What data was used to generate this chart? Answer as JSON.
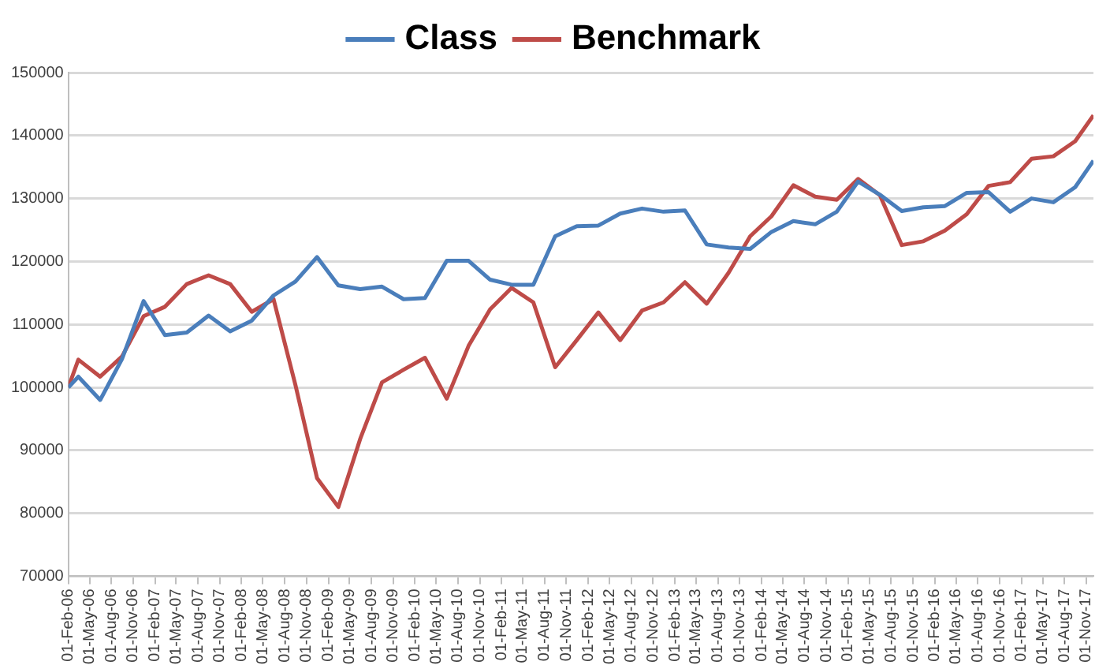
{
  "chart_data": {
    "type": "line",
    "legend": "top",
    "grid": "y",
    "marker": "none",
    "line_style": "solid",
    "x": [
      "2006-02-01",
      "2006-03-15",
      "2006-06-15",
      "2006-09-15",
      "2006-12-15",
      "2007-03-15",
      "2007-06-15",
      "2007-09-15",
      "2007-12-15",
      "2008-03-15",
      "2008-06-15",
      "2008-09-15",
      "2008-12-15",
      "2009-03-15",
      "2009-06-15",
      "2009-09-15",
      "2009-12-15",
      "2010-03-15",
      "2010-06-15",
      "2010-09-15",
      "2010-12-15",
      "2011-03-15",
      "2011-06-15",
      "2011-09-15",
      "2011-12-15",
      "2012-03-15",
      "2012-06-15",
      "2012-09-15",
      "2012-12-15",
      "2013-03-15",
      "2013-06-15",
      "2013-09-15",
      "2013-12-15",
      "2014-03-15",
      "2014-06-15",
      "2014-09-15",
      "2014-12-15",
      "2015-03-15",
      "2015-06-15",
      "2015-09-15",
      "2015-12-15",
      "2016-03-15",
      "2016-06-15",
      "2016-09-15",
      "2016-12-15",
      "2017-03-15",
      "2017-06-15",
      "2017-09-15",
      "2017-12-01"
    ],
    "series": [
      {
        "name": "Class",
        "color": "#4a7ebb",
        "values": [
          100000,
          101700,
          98000,
          104500,
          113700,
          108300,
          108700,
          111400,
          108900,
          110600,
          114600,
          116800,
          120700,
          116200,
          115600,
          116000,
          114000,
          114200,
          120100,
          120100,
          117100,
          116300,
          116300,
          124000,
          125600,
          125700,
          127600,
          128400,
          127900,
          128100,
          122700,
          122200,
          122000,
          124700,
          126400,
          125900,
          127900,
          132700,
          130600,
          128000,
          128600,
          128800,
          130900,
          131000,
          127900,
          130000,
          129400,
          131800,
          136000
        ]
      },
      {
        "name": "Benchmark",
        "color": "#be4b48",
        "values": [
          100000,
          104400,
          101700,
          104900,
          111300,
          112800,
          116400,
          117800,
          116400,
          112000,
          114000,
          100400,
          85600,
          81000,
          91800,
          100800,
          102800,
          104700,
          98200,
          106600,
          112400,
          115800,
          113500,
          103200,
          107500,
          111900,
          107500,
          112200,
          113500,
          116700,
          113300,
          118200,
          124000,
          127200,
          132100,
          130300,
          129800,
          133100,
          130500,
          122600,
          123200,
          124900,
          127500,
          132000,
          132600,
          136300,
          136700,
          139100,
          143200
        ]
      }
    ],
    "xlim": [
      "2006-02-01",
      "2017-12-01"
    ],
    "xticks": [
      {
        "value": "2006-02-01",
        "label": "01-Feb-06"
      },
      {
        "value": "2006-05-01",
        "label": "01-May-06"
      },
      {
        "value": "2006-08-01",
        "label": "01-Aug-06"
      },
      {
        "value": "2006-11-01",
        "label": "01-Nov-06"
      },
      {
        "value": "2007-02-01",
        "label": "01-Feb-07"
      },
      {
        "value": "2007-05-01",
        "label": "01-May-07"
      },
      {
        "value": "2007-08-01",
        "label": "01-Aug-07"
      },
      {
        "value": "2007-11-01",
        "label": "01-Nov-07"
      },
      {
        "value": "2008-02-01",
        "label": "01-Feb-08"
      },
      {
        "value": "2008-05-01",
        "label": "01-May-08"
      },
      {
        "value": "2008-08-01",
        "label": "01-Aug-08"
      },
      {
        "value": "2008-11-01",
        "label": "01-Nov-08"
      },
      {
        "value": "2009-02-01",
        "label": "01-Feb-09"
      },
      {
        "value": "2009-05-01",
        "label": "01-May-09"
      },
      {
        "value": "2009-08-01",
        "label": "01-Aug-09"
      },
      {
        "value": "2009-11-01",
        "label": "01-Nov-09"
      },
      {
        "value": "2010-02-01",
        "label": "01-Feb-10"
      },
      {
        "value": "2010-05-01",
        "label": "01-May-10"
      },
      {
        "value": "2010-08-01",
        "label": "01-Aug-10"
      },
      {
        "value": "2010-11-01",
        "label": "01-Nov-10"
      },
      {
        "value": "2011-02-01",
        "label": "01-Feb-11"
      },
      {
        "value": "2011-05-01",
        "label": "01-May-11"
      },
      {
        "value": "2011-08-01",
        "label": "01-Aug-11"
      },
      {
        "value": "2011-11-01",
        "label": "01-Nov-11"
      },
      {
        "value": "2012-02-01",
        "label": "01-Feb-12"
      },
      {
        "value": "2012-05-01",
        "label": "01-May-12"
      },
      {
        "value": "2012-08-01",
        "label": "01-Aug-12"
      },
      {
        "value": "2012-11-01",
        "label": "01-Nov-12"
      },
      {
        "value": "2013-02-01",
        "label": "01-Feb-13"
      },
      {
        "value": "2013-05-01",
        "label": "01-May-13"
      },
      {
        "value": "2013-08-01",
        "label": "01-Aug-13"
      },
      {
        "value": "2013-11-01",
        "label": "01-Nov-13"
      },
      {
        "value": "2014-02-01",
        "label": "01-Feb-14"
      },
      {
        "value": "2014-05-01",
        "label": "01-May-14"
      },
      {
        "value": "2014-08-01",
        "label": "01-Aug-14"
      },
      {
        "value": "2014-11-01",
        "label": "01-Nov-14"
      },
      {
        "value": "2015-02-01",
        "label": "01-Feb-15"
      },
      {
        "value": "2015-05-01",
        "label": "01-May-15"
      },
      {
        "value": "2015-08-01",
        "label": "01-Aug-15"
      },
      {
        "value": "2015-11-01",
        "label": "01-Nov-15"
      },
      {
        "value": "2016-02-01",
        "label": "01-Feb-16"
      },
      {
        "value": "2016-05-01",
        "label": "01-May-16"
      },
      {
        "value": "2016-08-01",
        "label": "01-Aug-16"
      },
      {
        "value": "2016-11-01",
        "label": "01-Nov-16"
      },
      {
        "value": "2017-02-01",
        "label": "01-Feb-17"
      },
      {
        "value": "2017-05-01",
        "label": "01-May-17"
      },
      {
        "value": "2017-08-01",
        "label": "01-Aug-17"
      },
      {
        "value": "2017-11-01",
        "label": "01-Nov-17"
      }
    ],
    "ylim": [
      70000,
      150000
    ],
    "yticks": [
      70000,
      80000,
      90000,
      100000,
      110000,
      120000,
      130000,
      140000,
      150000
    ]
  }
}
